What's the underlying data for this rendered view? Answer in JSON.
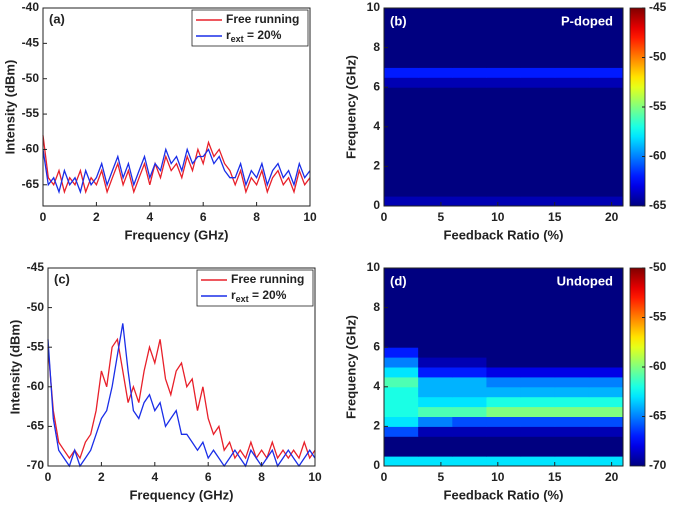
{
  "chart_data": [
    {
      "type": "line",
      "panel_label": "(a)",
      "xlabel": "Frequency (GHz)",
      "ylabel": "Intensity (dBm)",
      "xlim": [
        0,
        10
      ],
      "ylim": [
        -68,
        -40
      ],
      "xticks": [
        0,
        2,
        4,
        6,
        8,
        10
      ],
      "yticks": [
        -65,
        -60,
        -55,
        -50,
        -45,
        -40
      ],
      "legend": "upper right",
      "x": [
        0,
        0.2,
        0.4,
        0.6,
        0.8,
        1,
        1.2,
        1.4,
        1.6,
        1.8,
        2,
        2.2,
        2.4,
        2.6,
        2.8,
        3,
        3.2,
        3.4,
        3.6,
        3.8,
        4,
        4.2,
        4.4,
        4.6,
        4.8,
        5,
        5.2,
        5.4,
        5.6,
        5.8,
        6,
        6.2,
        6.4,
        6.6,
        6.8,
        7,
        7.2,
        7.4,
        7.6,
        7.8,
        8,
        8.2,
        8.4,
        8.6,
        8.8,
        9,
        9.2,
        9.4,
        9.6,
        9.8,
        10
      ],
      "series": [
        {
          "name": "Free running",
          "color": "#e8202a",
          "values": [
            -58,
            -64,
            -65,
            -63,
            -66,
            -64,
            -65,
            -63,
            -66,
            -64,
            -65,
            -63,
            -66,
            -64,
            -62,
            -65,
            -63,
            -66,
            -64,
            -62,
            -65,
            -62,
            -64,
            -61,
            -63,
            -62,
            -64,
            -61,
            -63,
            -60,
            -62,
            -59,
            -61,
            -60,
            -62,
            -63,
            -65,
            -63,
            -66,
            -64,
            -65,
            -63,
            -66,
            -64,
            -63,
            -65,
            -64,
            -66,
            -63,
            -65,
            -64
          ]
        },
        {
          "name": "r",
          "name_subscript": "ext",
          "name_suffix": " = 20%",
          "color": "#1a2ee8",
          "values": [
            -60,
            -65,
            -64,
            -66,
            -63,
            -65,
            -64,
            -66,
            -63,
            -65,
            -64,
            -62,
            -65,
            -63,
            -61,
            -64,
            -62,
            -65,
            -63,
            -61,
            -64,
            -62,
            -63,
            -60,
            -62,
            -61,
            -63,
            -60,
            -62,
            -61,
            -61,
            -60,
            -62,
            -61,
            -63,
            -64,
            -64,
            -62,
            -65,
            -63,
            -64,
            -62,
            -65,
            -63,
            -62,
            -64,
            -63,
            -65,
            -62,
            -64,
            -63
          ]
        }
      ]
    },
    {
      "type": "heatmap",
      "panel_label": "(b)",
      "annotation": "P-doped",
      "xlabel": "Feedback Ratio (%)",
      "ylabel": "Frequency (GHz)",
      "xlim": [
        0,
        21
      ],
      "ylim": [
        0,
        10
      ],
      "xticks": [
        0,
        5,
        10,
        15,
        20
      ],
      "yticks": [
        0,
        2,
        4,
        6,
        8,
        10
      ],
      "colormap": "jet",
      "clim": [
        -65,
        -45
      ],
      "cticks": [
        -65,
        -60,
        -55,
        -50,
        -45
      ],
      "x": [
        1.5,
        4.5,
        7.5,
        10.5,
        13.5,
        16.5,
        19.5
      ],
      "y": [
        0.25,
        0.75,
        1.25,
        1.75,
        2.25,
        2.75,
        3.25,
        3.75,
        4.25,
        4.75,
        5.25,
        5.75,
        6.25,
        6.75,
        7.25,
        7.75,
        8.25,
        8.75,
        9.25,
        9.75
      ],
      "z": [
        [
          -64,
          -64,
          -64,
          -64,
          -64,
          -64,
          -64
        ],
        [
          -65,
          -65,
          -65,
          -65,
          -65,
          -65,
          -65
        ],
        [
          -65,
          -65,
          -65,
          -65,
          -65,
          -65,
          -65
        ],
        [
          -65,
          -65,
          -65,
          -65,
          -65,
          -65,
          -65
        ],
        [
          -65,
          -65,
          -65,
          -65,
          -65,
          -65,
          -65
        ],
        [
          -65,
          -65,
          -65,
          -65,
          -65,
          -65,
          -65
        ],
        [
          -65,
          -65,
          -65,
          -65,
          -65,
          -65,
          -65
        ],
        [
          -65,
          -65,
          -65,
          -65,
          -65,
          -65,
          -65
        ],
        [
          -65,
          -65,
          -65,
          -65,
          -65,
          -65,
          -65
        ],
        [
          -65,
          -65,
          -65,
          -65,
          -65,
          -65,
          -65
        ],
        [
          -65,
          -65,
          -65,
          -65,
          -65,
          -65,
          -65
        ],
        [
          -65,
          -65,
          -65,
          -65,
          -65,
          -65,
          -65
        ],
        [
          -64,
          -64,
          -64,
          -64,
          -64,
          -64,
          -64
        ],
        [
          -62,
          -62,
          -62,
          -62,
          -62,
          -62,
          -62
        ],
        [
          -65,
          -65,
          -65,
          -65,
          -65,
          -65,
          -65
        ],
        [
          -65,
          -65,
          -65,
          -65,
          -65,
          -65,
          -65
        ],
        [
          -65,
          -65,
          -65,
          -65,
          -65,
          -65,
          -65
        ],
        [
          -65,
          -65,
          -65,
          -65,
          -65,
          -65,
          -65
        ],
        [
          -65,
          -65,
          -65,
          -65,
          -65,
          -65,
          -65
        ],
        [
          -65,
          -65,
          -65,
          -65,
          -65,
          -65,
          -65
        ]
      ]
    },
    {
      "type": "line",
      "panel_label": "(c)",
      "xlabel": "Frequency (GHz)",
      "ylabel": "Intensity (dBm)",
      "xlim": [
        0,
        10
      ],
      "ylim": [
        -70,
        -45
      ],
      "xticks": [
        0,
        2,
        4,
        6,
        8,
        10
      ],
      "yticks": [
        -70,
        -65,
        -60,
        -55,
        -50,
        -45
      ],
      "legend": "upper right",
      "x": [
        0,
        0.2,
        0.4,
        0.6,
        0.8,
        1,
        1.2,
        1.4,
        1.6,
        1.8,
        2,
        2.2,
        2.4,
        2.6,
        2.8,
        3,
        3.2,
        3.4,
        3.6,
        3.8,
        4,
        4.2,
        4.4,
        4.6,
        4.8,
        5,
        5.2,
        5.4,
        5.6,
        5.8,
        6,
        6.2,
        6.4,
        6.6,
        6.8,
        7,
        7.2,
        7.4,
        7.6,
        7.8,
        8,
        8.2,
        8.4,
        8.6,
        8.8,
        9,
        9.2,
        9.4,
        9.6,
        9.8,
        10
      ],
      "series": [
        {
          "name": "Free running",
          "color": "#e8202a",
          "values": [
            -55,
            -63,
            -67,
            -68,
            -69,
            -68,
            -69,
            -67,
            -66,
            -63,
            -58,
            -60,
            -55,
            -54,
            -58,
            -62,
            -60,
            -62,
            -58,
            -55,
            -57,
            -54,
            -59,
            -61,
            -58,
            -57,
            -60,
            -59,
            -63,
            -60,
            -64,
            -66,
            -65,
            -68,
            -67,
            -69,
            -68,
            -69,
            -67,
            -69,
            -68,
            -69,
            -67,
            -69,
            -68,
            -69,
            -68,
            -69,
            -67,
            -69,
            -68
          ]
        },
        {
          "name": "r",
          "name_subscript": "ext",
          "name_suffix": " = 20%",
          "color": "#1a2ee8",
          "values": [
            -54,
            -64,
            -68,
            -69,
            -70,
            -68,
            -70,
            -69,
            -68,
            -66,
            -64,
            -63,
            -60,
            -56,
            -52,
            -58,
            -63,
            -64,
            -62,
            -61,
            -63,
            -62,
            -65,
            -64,
            -63,
            -66,
            -66,
            -67,
            -68,
            -67,
            -69,
            -68,
            -69,
            -70,
            -69,
            -68,
            -69,
            -70,
            -68,
            -69,
            -70,
            -69,
            -68,
            -70,
            -69,
            -68,
            -69,
            -70,
            -69,
            -68,
            -69
          ]
        }
      ]
    },
    {
      "type": "heatmap",
      "panel_label": "(d)",
      "annotation": "Undoped",
      "xlabel": "Feedback Ratio (%)",
      "ylabel": "Frequency (GHz)",
      "xlim": [
        0,
        21
      ],
      "ylim": [
        0,
        10
      ],
      "xticks": [
        0,
        5,
        10,
        15,
        20
      ],
      "yticks": [
        0,
        2,
        4,
        6,
        8,
        10
      ],
      "colormap": "jet",
      "clim": [
        -70,
        -50
      ],
      "cticks": [
        -70,
        -65,
        -60,
        -55,
        -50
      ],
      "x": [
        1.5,
        4.5,
        7.5,
        10.5,
        13.5,
        16.5,
        19.5
      ],
      "y": [
        0.25,
        0.75,
        1.25,
        1.75,
        2.25,
        2.75,
        3.25,
        3.75,
        4.25,
        4.75,
        5.25,
        5.75,
        6.25,
        6.75,
        7.25,
        7.75,
        8.25,
        8.75,
        9.25,
        9.75
      ],
      "z": [
        [
          -63,
          -63,
          -63,
          -63,
          -63,
          -63,
          -63
        ],
        [
          -70,
          -70,
          -70,
          -70,
          -70,
          -70,
          -70
        ],
        [
          -70,
          -70,
          -70,
          -70,
          -70,
          -70,
          -70
        ],
        [
          -66,
          -69,
          -69,
          -69,
          -69,
          -69,
          -69
        ],
        [
          -63,
          -65,
          -66,
          -66,
          -66,
          -66,
          -66
        ],
        [
          -62,
          -61,
          -61,
          -60,
          -60,
          -60,
          -60
        ],
        [
          -62,
          -63,
          -63,
          -62,
          -62,
          -62,
          -62
        ],
        [
          -62,
          -64,
          -64,
          -64,
          -64,
          -64,
          -64
        ],
        [
          -61,
          -64,
          -64,
          -65,
          -65,
          -65,
          -65
        ],
        [
          -63,
          -67,
          -67,
          -68,
          -68,
          -68,
          -68
        ],
        [
          -65,
          -69,
          -69,
          -70,
          -70,
          -70,
          -70
        ],
        [
          -67,
          -70,
          -70,
          -70,
          -70,
          -70,
          -70
        ],
        [
          -70,
          -70,
          -70,
          -70,
          -70,
          -70,
          -70
        ],
        [
          -70,
          -70,
          -70,
          -70,
          -70,
          -70,
          -70
        ],
        [
          -70,
          -70,
          -70,
          -70,
          -70,
          -70,
          -70
        ],
        [
          -70,
          -70,
          -70,
          -70,
          -70,
          -70,
          -70
        ],
        [
          -70,
          -70,
          -70,
          -70,
          -70,
          -70,
          -70
        ],
        [
          -70,
          -70,
          -70,
          -70,
          -70,
          -70,
          -70
        ],
        [
          -70,
          -70,
          -70,
          -70,
          -70,
          -70,
          -70
        ],
        [
          -70,
          -70,
          -70,
          -70,
          -70,
          -70,
          -70
        ]
      ]
    }
  ]
}
